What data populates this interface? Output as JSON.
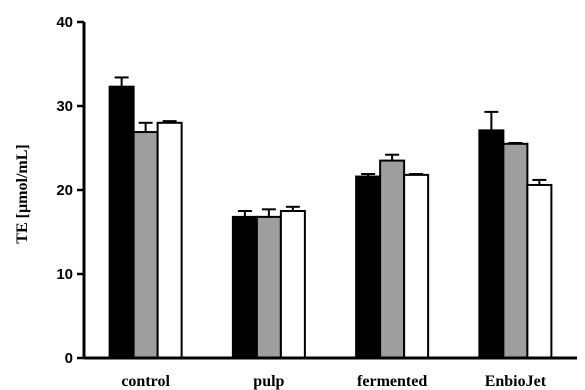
{
  "chart_data": {
    "type": "bar",
    "title": "",
    "xlabel": "",
    "ylabel": "TE [µmol/mL]",
    "ylim": [
      0,
      40
    ],
    "yticks": [
      0,
      10,
      20,
      30,
      40
    ],
    "grid": false,
    "legend": "none",
    "categories": [
      "control",
      "pulp",
      "fermented",
      "EnbioJet"
    ],
    "series": [
      {
        "color": "#000000",
        "values": [
          32.3,
          16.8,
          21.6,
          27.1
        ],
        "errors": [
          1.1,
          0.7,
          0.3,
          2.2
        ]
      },
      {
        "color": "#9e9e9e",
        "values": [
          26.9,
          16.8,
          23.5,
          25.5
        ],
        "errors": [
          1.1,
          0.9,
          0.7,
          0.1
        ]
      },
      {
        "color": "#ffffff",
        "values": [
          28.0,
          17.5,
          21.8,
          20.6
        ],
        "errors": [
          0.2,
          0.5,
          0.1,
          0.6
        ]
      }
    ]
  }
}
